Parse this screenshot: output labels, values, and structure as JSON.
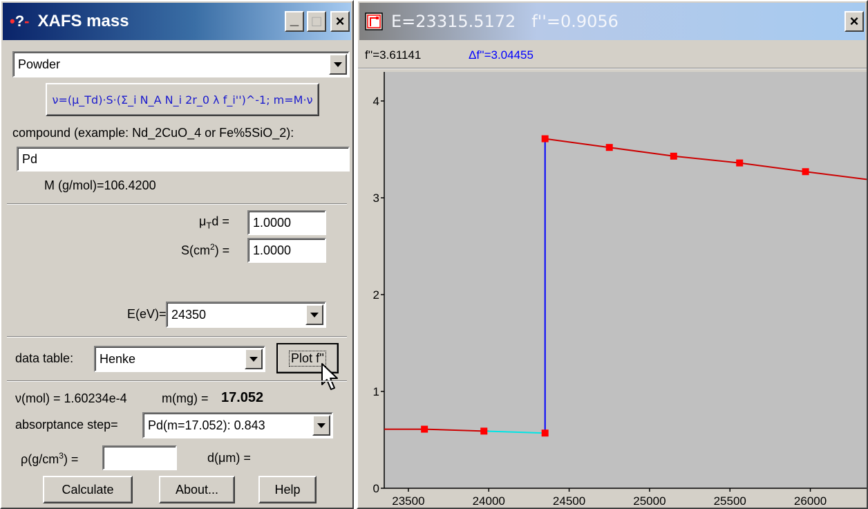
{
  "left_window": {
    "title": "XAFS mass",
    "caption_buttons": {
      "minimize": "_",
      "maximize": "□",
      "close": "×"
    },
    "sample_type": "Powder",
    "formula_button": "ν=(μ_Td)·S·(Σ_i N_A N_i 2r_0 λ f_i'')^-1;   m=M·ν",
    "compound_label": "compound (example: Nd_2CuO_4 or Fe%5SiO_2):",
    "compound_value": "Pd",
    "molar_mass": "M (g/mol)=106.4200",
    "mu_label": "μ",
    "mu_sub": "T",
    "mu_suffix": "d =",
    "mu_value": "1.0000",
    "s_label": "S(cm",
    "s_sup": "2",
    "s_suffix": ") =",
    "s_value": "1.0000",
    "energy_label": "E(eV)=",
    "energy_value": "24350",
    "data_table_label": "data table:",
    "data_table_value": "Henke",
    "plot_button": "Plot f''",
    "nu_result": "ν(mol) = 1.60234e-4",
    "m_label": "m(mg) =",
    "m_value": "17.052",
    "absorptance_label": "absorptance step=",
    "absorptance_value": "Pd(m=17.052): 0.843",
    "rho_label": "ρ(g/cm",
    "rho_sup": "3",
    "rho_suffix": ") =",
    "rho_value": "",
    "d_label": "d(μm) =",
    "calculate_button": "Calculate",
    "about_button": "About...",
    "help_button": "Help"
  },
  "right_window": {
    "title": "E=23315.5172   f''=0.9056",
    "close_button": "×",
    "fpp_readout": "f''=3.61141",
    "delta_fpp_readout": "Δf''=3.04455"
  },
  "colors": {
    "curve": "#cc0000",
    "marker": "#ff0000",
    "edge_line": "#0000ff",
    "bridge_line": "#00e5e5",
    "plot_bg": "#c0c0c0",
    "delta_text": "#0000ff"
  },
  "chart_data": {
    "type": "line",
    "xlim": [
      23350,
      26350
    ],
    "ylim": [
      0,
      4.3
    ],
    "x_ticks": [
      23500,
      24000,
      24500,
      25000,
      25500,
      26000
    ],
    "y_ticks": [
      0,
      1,
      2,
      3,
      4
    ],
    "grid": false,
    "series": [
      {
        "segment": "below-edge",
        "color": "#cc0000",
        "points": [
          [
            23350,
            0.61
          ],
          [
            23600,
            0.61
          ],
          [
            23970,
            0.59
          ],
          [
            24000,
            0.59
          ]
        ]
      },
      {
        "segment": "bridge",
        "color": "#00e5e5",
        "points": [
          [
            23970,
            0.59
          ],
          [
            24350,
            0.57
          ]
        ]
      },
      {
        "segment": "edge",
        "color": "#0000ff",
        "points": [
          [
            24350,
            0.57
          ],
          [
            24350,
            3.61
          ]
        ]
      },
      {
        "segment": "above-edge",
        "color": "#cc0000",
        "points": [
          [
            24350,
            3.61
          ],
          [
            24750,
            3.52
          ],
          [
            25150,
            3.43
          ],
          [
            25560,
            3.36
          ],
          [
            25970,
            3.27
          ],
          [
            26350,
            3.19
          ]
        ]
      }
    ],
    "markers": [
      [
        23600,
        0.61
      ],
      [
        23970,
        0.59
      ],
      [
        24350,
        0.57
      ],
      [
        24350,
        3.61
      ],
      [
        24750,
        3.52
      ],
      [
        25150,
        3.43
      ],
      [
        25560,
        3.36
      ],
      [
        25970,
        3.27
      ]
    ]
  }
}
